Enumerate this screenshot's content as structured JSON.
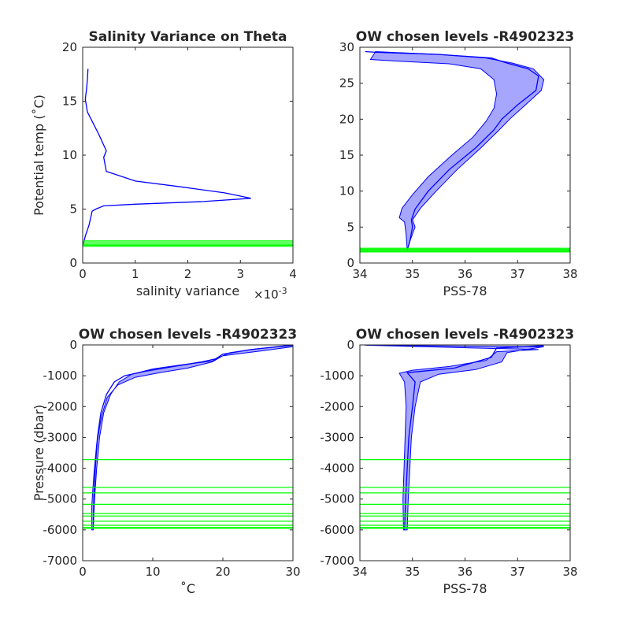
{
  "colors": {
    "profile": "#0000ff",
    "levels": "#00ff00",
    "axis": "#262626",
    "background": "#ffffff"
  },
  "chart_data": [
    {
      "id": "salinity-variance",
      "type": "line",
      "title": "Salinity Variance on Theta",
      "xlabel": "salinity variance",
      "ylabel": "Potential temp (˚C)",
      "x_exponent": "×10",
      "x_exponent_power": "-3",
      "xlim": [
        0,
        4
      ],
      "ylim": [
        0,
        20
      ],
      "xticks": [
        0,
        1,
        2,
        3,
        4
      ],
      "yticks": [
        0,
        5,
        10,
        15,
        20
      ],
      "series": [
        {
          "x": [
            0.1,
            0.09,
            0.07,
            0.05,
            0.09,
            0.3,
            0.45,
            0.4,
            0.45,
            1.0,
            1.8,
            2.7,
            3.2,
            2.3,
            1.0,
            0.4,
            0.25,
            0.18,
            0.12,
            0.05,
            0.0
          ],
          "y": [
            18,
            17,
            16,
            15.2,
            14,
            12,
            10.4,
            9.8,
            8.5,
            7.6,
            7.1,
            6.5,
            6.0,
            5.7,
            5.45,
            5.3,
            5.0,
            4.8,
            3.5,
            2.5,
            1.5
          ]
        }
      ],
      "level_lines": [
        1.55,
        1.65,
        1.75,
        1.9,
        2.05
      ]
    },
    {
      "id": "theta-salinity",
      "type": "line",
      "title": "OW chosen levels -R4902323",
      "xlabel": "PSS-78",
      "ylabel": "",
      "xlim": [
        34,
        38
      ],
      "ylim": [
        0,
        30
      ],
      "xticks": [
        34,
        35,
        36,
        37,
        38
      ],
      "yticks": [
        0,
        5,
        10,
        15,
        20,
        25,
        30
      ],
      "series": [
        {
          "x": [
            34.9,
            34.95,
            35.0,
            34.98,
            35.05,
            35.3,
            35.7,
            36.2,
            36.55,
            36.7,
            37.0,
            37.35,
            37.4,
            37.2,
            36.8,
            36.5,
            35.5,
            34.3,
            34.1
          ],
          "y": [
            1.8,
            3,
            5,
            6,
            7.5,
            10,
            13,
            16,
            18.5,
            20,
            22,
            24,
            26,
            27,
            27.8,
            28.5,
            29.0,
            29.3,
            29.4
          ]
        }
      ],
      "envelope_upper": [
        [
          34.9,
          1.8
        ],
        [
          34.95,
          3
        ],
        [
          35.05,
          5
        ],
        [
          35.0,
          6
        ],
        [
          35.15,
          7.6
        ],
        [
          35.45,
          10
        ],
        [
          35.85,
          13
        ],
        [
          36.3,
          16
        ],
        [
          36.65,
          18.5
        ],
        [
          36.85,
          20
        ],
        [
          37.15,
          22
        ],
        [
          37.45,
          24
        ],
        [
          37.5,
          25.5
        ],
        [
          37.3,
          27
        ],
        [
          36.9,
          27.8
        ],
        [
          36.4,
          28.5
        ],
        [
          35.5,
          29.0
        ],
        [
          34.3,
          29.4
        ]
      ],
      "envelope_lower": [
        [
          34.2,
          28.3
        ],
        [
          34.9,
          28.0
        ],
        [
          35.7,
          27.7
        ],
        [
          36.3,
          27.0
        ],
        [
          36.55,
          25.5
        ],
        [
          36.6,
          23.5
        ],
        [
          36.55,
          21.5
        ],
        [
          36.4,
          19.7
        ],
        [
          36.15,
          17.5
        ],
        [
          35.75,
          15
        ],
        [
          35.3,
          12
        ],
        [
          35.0,
          9.5
        ],
        [
          34.8,
          7.6
        ],
        [
          34.75,
          6.3
        ],
        [
          34.85,
          5.7
        ],
        [
          34.88,
          4
        ],
        [
          34.9,
          1.8
        ]
      ],
      "level_lines": [
        1.55,
        1.65,
        1.75,
        1.9,
        2.05
      ]
    },
    {
      "id": "pressure-temperature",
      "type": "line",
      "title": "OW chosen levels -R4902323",
      "xlabel": "˚C",
      "ylabel": "Pressure (dbar)",
      "xlim": [
        0,
        30
      ],
      "ylim": [
        -7000,
        0
      ],
      "xticks": [
        0,
        10,
        20,
        30
      ],
      "yticks": [
        -7000,
        -6000,
        -5000,
        -4000,
        -3000,
        -2000,
        -1000,
        0
      ],
      "series": [
        {
          "x": [
            1.5,
            1.6,
            1.8,
            2.1,
            2.6,
            3.4,
            4.5,
            6.0,
            9.0,
            13.0,
            17.0,
            19.0,
            20.0,
            24.0,
            28.0,
            30.0
          ],
          "y": [
            -6000,
            -5000,
            -4000,
            -3000,
            -2200,
            -1600,
            -1200,
            -1000,
            -850,
            -700,
            -550,
            -450,
            -300,
            -150,
            -50,
            0
          ]
        }
      ],
      "envelope_upper": [
        [
          1.5,
          -6000
        ],
        [
          1.7,
          -5000
        ],
        [
          2.0,
          -4000
        ],
        [
          2.4,
          -3000
        ],
        [
          3.0,
          -2200
        ],
        [
          4.0,
          -1600
        ],
        [
          5.2,
          -1200
        ],
        [
          7.0,
          -950
        ],
        [
          10.0,
          -780
        ],
        [
          14.0,
          -650
        ],
        [
          18.5,
          -520
        ],
        [
          19.5,
          -400
        ],
        [
          21.0,
          -250
        ],
        [
          25.0,
          -120
        ],
        [
          30.0,
          -20
        ]
      ],
      "envelope_lower": [
        [
          30.0,
          -60
        ],
        [
          26.0,
          -180
        ],
        [
          20.0,
          -350
        ],
        [
          18.5,
          -550
        ],
        [
          15.0,
          -750
        ],
        [
          11.0,
          -900
        ],
        [
          7.5,
          -1050
        ],
        [
          5.0,
          -1300
        ],
        [
          3.5,
          -1700
        ],
        [
          2.7,
          -2300
        ],
        [
          2.0,
          -3200
        ],
        [
          1.6,
          -4200
        ],
        [
          1.3,
          -5200
        ],
        [
          1.3,
          -6000
        ]
      ],
      "level_lines": [
        -3720,
        -4620,
        -4800,
        -5170,
        -5470,
        -5550,
        -5720,
        -5850,
        -5920,
        -5950
      ]
    },
    {
      "id": "pressure-salinity",
      "type": "line",
      "title": "OW chosen levels -R4902323",
      "xlabel": "PSS-78",
      "ylabel": "",
      "xlim": [
        34,
        38
      ],
      "ylim": [
        -7000,
        0
      ],
      "xticks": [
        34,
        35,
        36,
        37,
        38
      ],
      "yticks": [
        -7000,
        -6000,
        -5000,
        -4000,
        -3000,
        -2000,
        -1000,
        0
      ],
      "series": [
        {
          "x": [
            34.85,
            34.87,
            34.9,
            34.93,
            35.0,
            35.05,
            34.9,
            35.2,
            35.8,
            36.5,
            36.6,
            37.5
          ],
          "y": [
            -6000,
            -5000,
            -4000,
            -3000,
            -2000,
            -1200,
            -900,
            -850,
            -750,
            -400,
            -100,
            -20
          ]
        }
      ],
      "envelope_upper": [
        [
          34.9,
          -6000
        ],
        [
          34.92,
          -5000
        ],
        [
          34.95,
          -4000
        ],
        [
          34.98,
          -3000
        ],
        [
          35.05,
          -2000
        ],
        [
          35.15,
          -1200
        ],
        [
          35.5,
          -950
        ],
        [
          36.2,
          -800
        ],
        [
          36.7,
          -550
        ],
        [
          36.8,
          -250
        ],
        [
          37.5,
          -60
        ],
        [
          34.1,
          -10
        ]
      ],
      "envelope_lower": [
        [
          37.4,
          -150
        ],
        [
          36.6,
          -220
        ],
        [
          36.4,
          -500
        ],
        [
          35.7,
          -700
        ],
        [
          35.0,
          -820
        ],
        [
          34.75,
          -920
        ],
        [
          34.85,
          -1200
        ],
        [
          34.88,
          -2000
        ],
        [
          34.86,
          -3000
        ],
        [
          34.84,
          -4000
        ],
        [
          34.82,
          -5000
        ],
        [
          34.83,
          -6000
        ]
      ],
      "level_lines": [
        -3720,
        -4620,
        -4800,
        -5170,
        -5470,
        -5550,
        -5720,
        -5850,
        -5920,
        -5950
      ]
    }
  ]
}
